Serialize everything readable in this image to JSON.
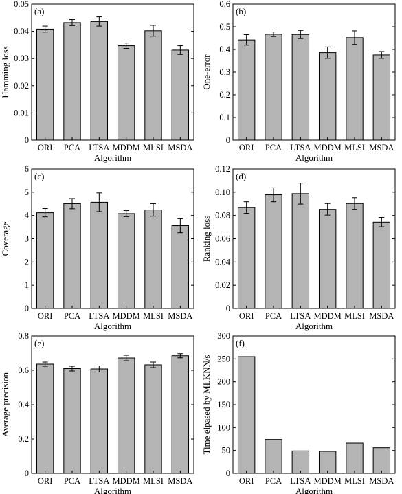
{
  "colors": {
    "bar": "#b4b4b4",
    "bar_stroke": "#000000",
    "axis": "#000000"
  },
  "chart_data": [
    {
      "panel": "(a)",
      "type": "bar",
      "categories": [
        "ORI",
        "PCA",
        "LTSA",
        "MDDM",
        "MLSI",
        "MSDA"
      ],
      "values": [
        0.0408,
        0.0432,
        0.0436,
        0.0347,
        0.0402,
        0.0331
      ],
      "errors": [
        0.0011,
        0.0011,
        0.0017,
        0.001,
        0.002,
        0.0016
      ],
      "ylabel": "Hamming loss",
      "xlabel": "Algorithm",
      "ylim": [
        0,
        0.05
      ],
      "yticks": [
        0,
        0.01,
        0.02,
        0.03,
        0.04,
        0.05
      ],
      "yticklabels": [
        "0",
        "0.01",
        "0.02",
        "0.03",
        "0.04",
        "0.05"
      ],
      "grid": false
    },
    {
      "panel": "(b)",
      "type": "bar",
      "categories": [
        "ORI",
        "PCA",
        "LTSA",
        "MDDM",
        "MLSI",
        "MSDA"
      ],
      "values": [
        0.442,
        0.467,
        0.466,
        0.386,
        0.452,
        0.376
      ],
      "errors": [
        0.023,
        0.01,
        0.018,
        0.025,
        0.03,
        0.015
      ],
      "ylabel": "One-error",
      "xlabel": "Algorithm",
      "ylim": [
        0,
        0.6
      ],
      "yticks": [
        0,
        0.1,
        0.2,
        0.3,
        0.4,
        0.5,
        0.6
      ],
      "yticklabels": [
        "0",
        "0.1",
        "0.2",
        "0.3",
        "0.4",
        "0.5",
        "0.6"
      ],
      "grid": false
    },
    {
      "panel": "(c)",
      "type": "bar",
      "categories": [
        "ORI",
        "PCA",
        "LTSA",
        "MDDM",
        "MLSI",
        "MSDA"
      ],
      "values": [
        4.12,
        4.51,
        4.57,
        4.08,
        4.24,
        3.56
      ],
      "errors": [
        0.18,
        0.22,
        0.4,
        0.13,
        0.27,
        0.3
      ],
      "ylabel": "Coverage",
      "xlabel": "Algorithm",
      "ylim": [
        0,
        6
      ],
      "yticks": [
        0,
        1,
        2,
        3,
        4,
        5,
        6
      ],
      "yticklabels": [
        "0",
        "1",
        "2",
        "3",
        "4",
        "5",
        "6"
      ],
      "grid": false
    },
    {
      "panel": "(d)",
      "type": "bar",
      "categories": [
        "ORI",
        "PCA",
        "LTSA",
        "MDDM",
        "MLSI",
        "MSDA"
      ],
      "values": [
        0.0868,
        0.0978,
        0.0988,
        0.0853,
        0.0903,
        0.0743
      ],
      "errors": [
        0.005,
        0.006,
        0.009,
        0.005,
        0.005,
        0.004
      ],
      "ylabel": "Ranking loss",
      "xlabel": "Algorithm",
      "ylim": [
        0,
        0.12
      ],
      "yticks": [
        0,
        0.02,
        0.04,
        0.06,
        0.08,
        0.1,
        0.12
      ],
      "yticklabels": [
        "0",
        "0.02",
        "0.04",
        "0.06",
        "0.08",
        "0.10",
        "0.12"
      ],
      "grid": false
    },
    {
      "panel": "(e)",
      "type": "bar",
      "categories": [
        "ORI",
        "PCA",
        "LTSA",
        "MDDM",
        "MLSI",
        "MSDA"
      ],
      "values": [
        0.636,
        0.61,
        0.608,
        0.672,
        0.632,
        0.685
      ],
      "errors": [
        0.012,
        0.014,
        0.018,
        0.016,
        0.016,
        0.012
      ],
      "ylabel": "Average precision",
      "xlabel": "Algorithm",
      "ylim": [
        0,
        0.8
      ],
      "yticks": [
        0,
        0.2,
        0.4,
        0.6,
        0.8
      ],
      "yticklabels": [
        "0",
        "0.2",
        "0.4",
        "0.6",
        "0.8"
      ],
      "grid": false
    },
    {
      "panel": "(f)",
      "type": "bar",
      "categories": [
        "ORI",
        "PCA",
        "LTSA",
        "MDDM",
        "MLSI",
        "MSDA"
      ],
      "values": [
        255,
        74,
        49,
        48,
        66,
        56
      ],
      "errors": null,
      "ylabel": "Time elpased by MLKNN/s",
      "xlabel": "Algorithm",
      "ylim": [
        0,
        300
      ],
      "yticks": [
        0,
        50,
        100,
        150,
        200,
        250,
        300
      ],
      "yticklabels": [
        "0",
        "50",
        "100",
        "150",
        "200",
        "250",
        "300"
      ],
      "grid": false
    }
  ]
}
